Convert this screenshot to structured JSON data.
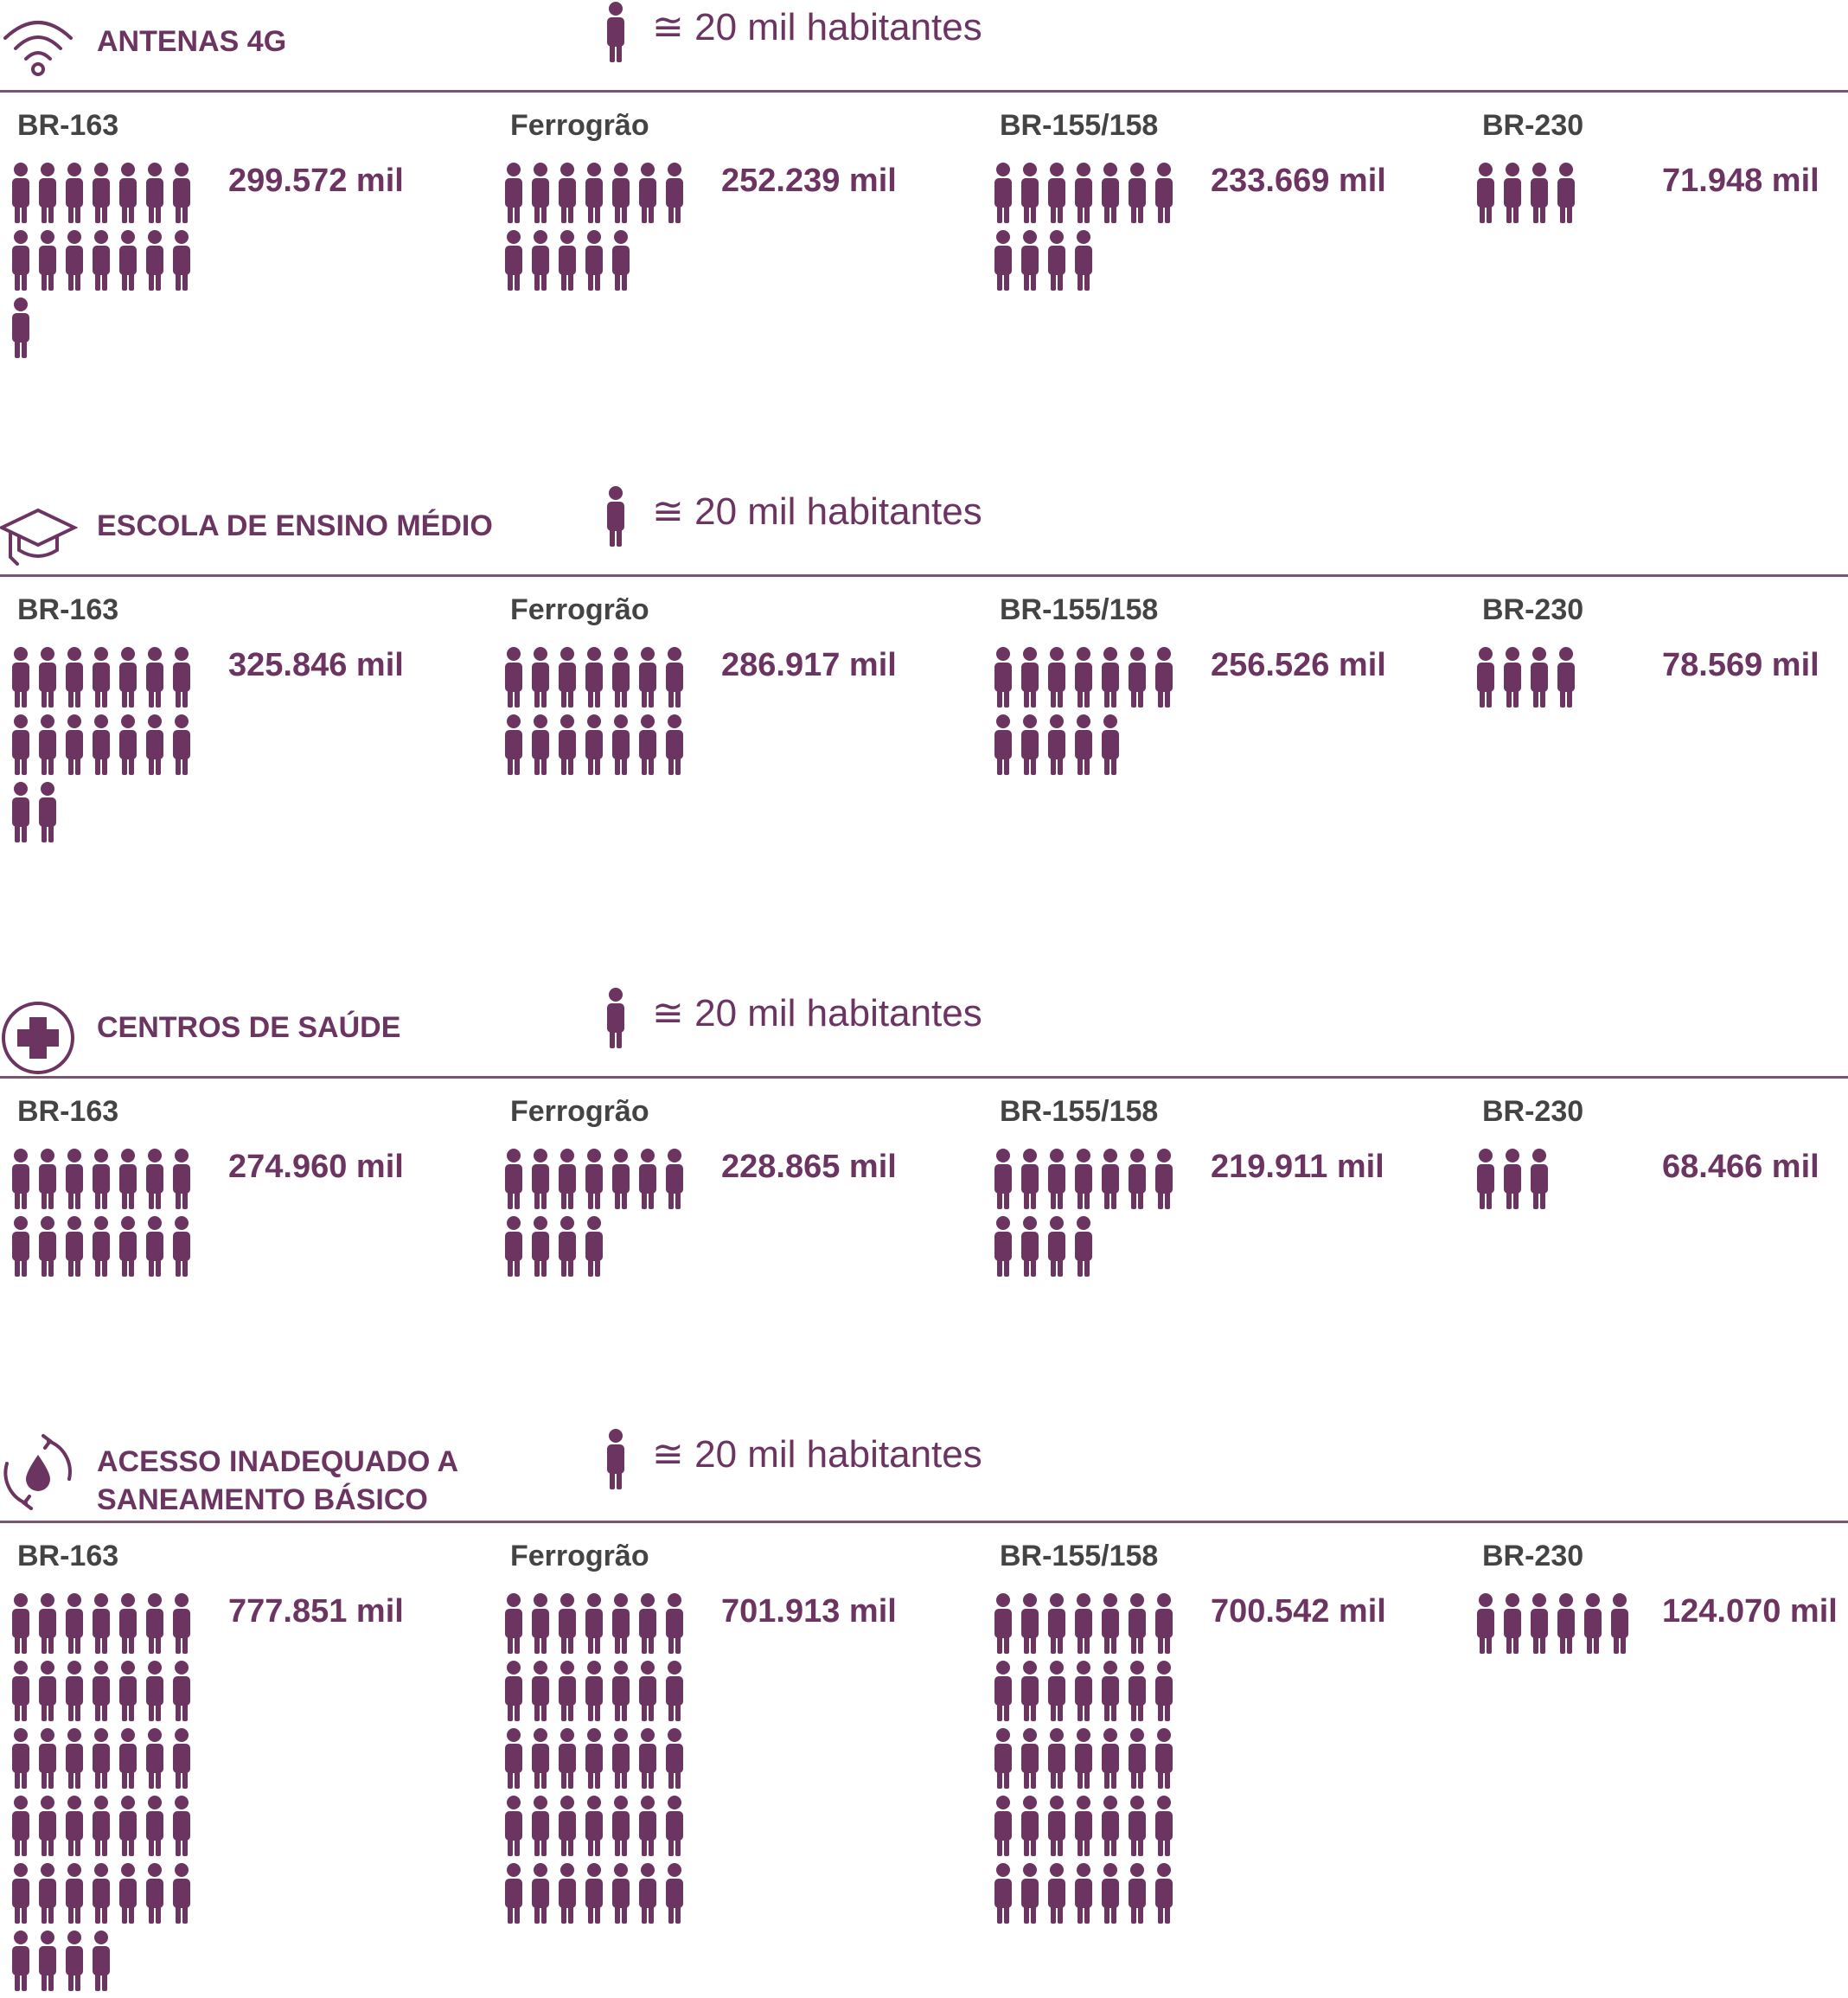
{
  "legend": {
    "unit_text": "≅ 20 mil habitantes",
    "icon": "person-icon"
  },
  "colors": {
    "accent": "#6b3461",
    "route_label": "#444444",
    "rule": "#7a5572"
  },
  "chart_data": [
    {
      "type": "pictogram",
      "title": "ANTENAS 4G",
      "icon": "wifi-icon",
      "unit_text": "≅ 20 mil habitantes",
      "categories": [
        "BR-163",
        "Ferrogrão",
        "BR-155/158",
        "BR-230"
      ],
      "values": [
        299.572,
        252.239,
        233.669,
        71.948
      ],
      "value_labels": [
        "299.572 mil",
        "252.239 mil",
        "233.669 mil",
        "71.948 mil"
      ],
      "icon_counts": [
        15,
        12,
        11,
        4
      ]
    },
    {
      "type": "pictogram",
      "title": "ESCOLA DE ENSINO MÉDIO",
      "icon": "graduation-cap-icon",
      "unit_text": "≅ 20 mil habitantes",
      "categories": [
        "BR-163",
        "Ferrogrão",
        "BR-155/158",
        "BR-230"
      ],
      "values": [
        325.846,
        286.917,
        256.526,
        78.569
      ],
      "value_labels": [
        "325.846 mil",
        "286.917 mil",
        "256.526 mil",
        "78.569 mil"
      ],
      "icon_counts": [
        16,
        14,
        12,
        4
      ]
    },
    {
      "type": "pictogram",
      "title": "CENTROS DE SAÚDE",
      "icon": "health-cross-icon",
      "unit_text": "≅ 20 mil habitantes",
      "categories": [
        "BR-163",
        "Ferrogrão",
        "BR-155/158",
        "BR-230"
      ],
      "values": [
        274.96,
        228.865,
        219.911,
        68.466
      ],
      "value_labels": [
        "274.960 mil",
        "228.865 mil",
        "219.911 mil",
        "68.466 mil"
      ],
      "icon_counts": [
        14,
        11,
        11,
        3
      ]
    },
    {
      "type": "pictogram",
      "title": "ACESSO INADEQUADO A\nSANEAMENTO BÁSICO",
      "icon": "water-recycle-icon",
      "unit_text": "≅ 20 mil habitantes",
      "categories": [
        "BR-163",
        "Ferrogrão",
        "BR-155/158",
        "BR-230"
      ],
      "values": [
        777.851,
        701.913,
        700.542,
        124.07
      ],
      "value_labels": [
        "777.851 mil",
        "701.913 mil",
        "700.542 mil",
        "124.070 mil"
      ],
      "icon_counts": [
        39,
        35,
        35,
        6
      ]
    }
  ]
}
